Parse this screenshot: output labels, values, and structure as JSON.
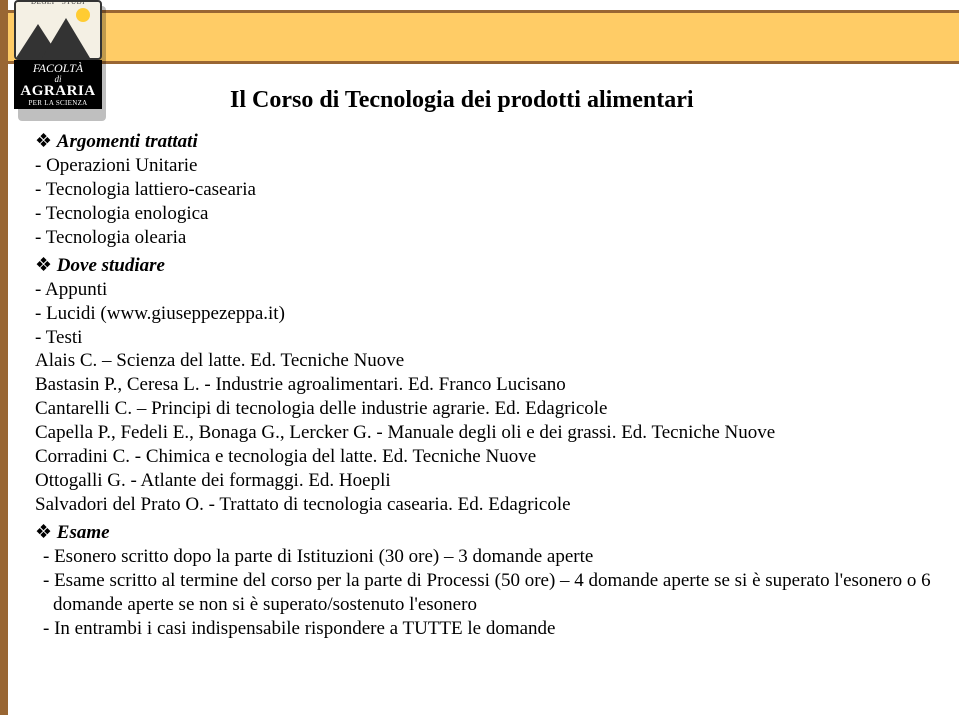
{
  "title": "Il Corso di Tecnologia dei prodotti alimentari",
  "sections": {
    "s1": {
      "head": "Argomenti trattati",
      "l1": "- Operazioni Unitarie",
      "l2": "- Tecnologia lattiero-casearia",
      "l3": "- Tecnologia enologica",
      "l4": "- Tecnologia olearia"
    },
    "s2": {
      "head": "Dove studiare",
      "l1": "- Appunti",
      "l2": "- Lucidi (www.giuseppezeppa.it)",
      "l3": "- Testi",
      "l4": "Alais C. – Scienza del latte. Ed. Tecniche Nuove",
      "l5": "Bastasin P., Ceresa L. - Industrie agroalimentari. Ed. Franco Lucisano",
      "l6": "Cantarelli C. – Principi di tecnologia delle industrie agrarie. Ed. Edagricole",
      "l7": "Capella P., Fedeli E., Bonaga G., Lercker G. - Manuale degli oli e dei grassi. Ed. Tecniche Nuove",
      "l8": "Corradini C. - Chimica e tecnologia del latte. Ed. Tecniche Nuove",
      "l9": "Ottogalli G. - Atlante dei formaggi. Ed. Hoepli",
      "l10": "Salvadori del Prato O. - Trattato di tecnologia casearia. Ed. Edagricole"
    },
    "s3": {
      "head": "Esame",
      "l1": "-   Esonero scritto dopo la parte di Istituzioni (30 ore) – 3 domande aperte",
      "l2": "-   Esame scritto al termine del corso per la parte di Processi (50 ore) – 4 domande aperte se si è superato l'esonero o 6 domande aperte se non si è superato/sostenuto l'esonero",
      "l3": "-   In entrambi i casi indispensabile rispondere a TUTTE le domande"
    }
  },
  "logo": {
    "line1": "FACOLTÀ",
    "line2": "di",
    "line3": "AGRARIA",
    "line4": "PER LA SCIENZA"
  }
}
